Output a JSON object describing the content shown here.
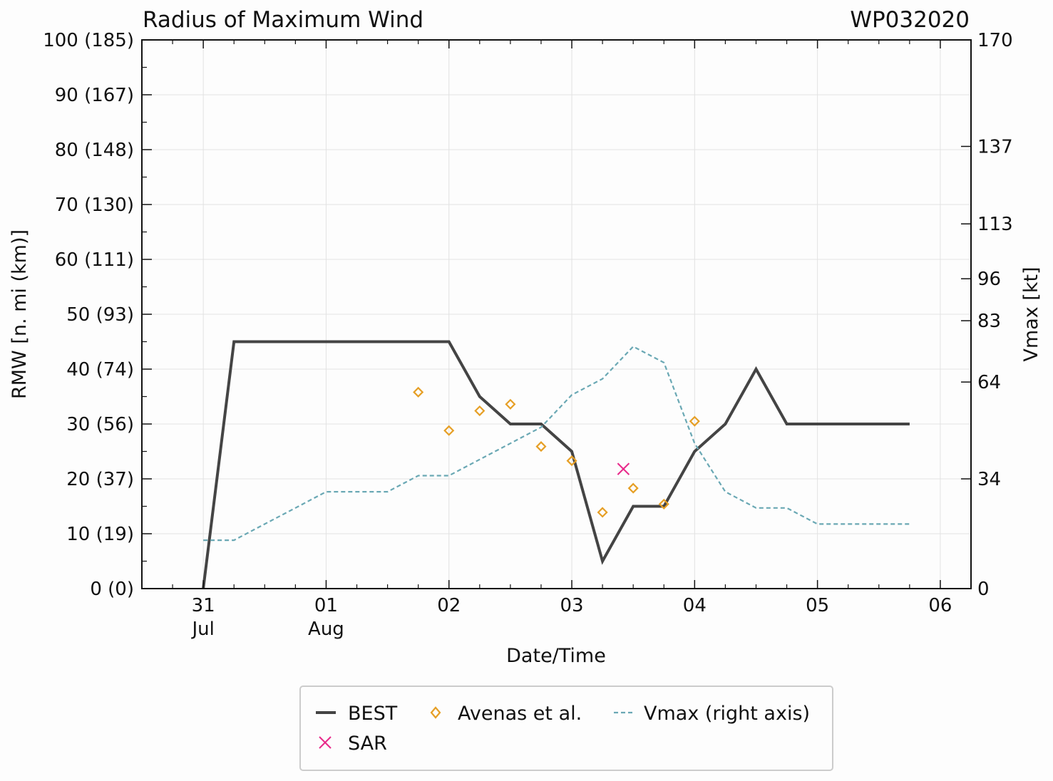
{
  "chart_data": {
    "type": "line",
    "title": "Radius of Maximum Wind",
    "storm_id": "WP032020",
    "xlabel": "Date/Time",
    "ylabel": "RMW [n. mi (km)]",
    "y2label": "Vmax [kt]",
    "xlim": [
      -0.5,
      6.25
    ],
    "ylim": [
      0,
      100
    ],
    "y2lim": [
      0,
      170
    ],
    "x_ticks": [
      {
        "x": 0,
        "label": "31",
        "sublabel": "Jul"
      },
      {
        "x": 1,
        "label": "01",
        "sublabel": "Aug"
      },
      {
        "x": 2,
        "label": "02",
        "sublabel": ""
      },
      {
        "x": 3,
        "label": "03",
        "sublabel": ""
      },
      {
        "x": 4,
        "label": "04",
        "sublabel": ""
      },
      {
        "x": 5,
        "label": "05",
        "sublabel": ""
      },
      {
        "x": 6,
        "label": "06",
        "sublabel": ""
      }
    ],
    "y_ticks": [
      {
        "y": 0,
        "label": "0 (0)"
      },
      {
        "y": 10,
        "label": "10 (19)"
      },
      {
        "y": 20,
        "label": "20 (37)"
      },
      {
        "y": 30,
        "label": "30 (56)"
      },
      {
        "y": 40,
        "label": "40 (74)"
      },
      {
        "y": 50,
        "label": "50 (93)"
      },
      {
        "y": 60,
        "label": "60 (111)"
      },
      {
        "y": 70,
        "label": "70 (130)"
      },
      {
        "y": 80,
        "label": "80 (148)"
      },
      {
        "y": 90,
        "label": "90 (167)"
      },
      {
        "y": 100,
        "label": "100 (185)"
      }
    ],
    "y2_ticks": [
      {
        "y": 0,
        "label": "0"
      },
      {
        "y": 34,
        "label": "34"
      },
      {
        "y": 64,
        "label": "64"
      },
      {
        "y": 83,
        "label": "83"
      },
      {
        "y": 96,
        "label": "96"
      },
      {
        "y": 113,
        "label": "113"
      },
      {
        "y": 137,
        "label": "137"
      },
      {
        "y": 170,
        "label": "170"
      }
    ],
    "series": [
      {
        "name": "BEST",
        "kind": "line",
        "color": "#444444",
        "x": [
          0,
          0.25,
          1.0,
          1.5,
          2.0,
          2.25,
          2.5,
          2.75,
          3.0,
          3.25,
          3.5,
          3.75,
          4.0,
          4.25,
          4.5,
          4.75,
          5.0,
          5.5,
          5.75
        ],
        "y": [
          0,
          45,
          45,
          45,
          45,
          35,
          30,
          30,
          25,
          5,
          15,
          15,
          25,
          30,
          40,
          30,
          30,
          30,
          30
        ]
      },
      {
        "name": "Avenas et al.",
        "kind": "scatter",
        "marker": "diamond",
        "color": "#E69F25",
        "x": [
          1.75,
          2.0,
          2.25,
          2.5,
          2.75,
          3.0,
          3.25,
          3.5,
          3.75,
          4.0
        ],
        "y": [
          35.8,
          28.8,
          32.4,
          33.6,
          25.9,
          23.3,
          13.9,
          18.3,
          15.4,
          30.5
        ]
      },
      {
        "name": "SAR",
        "kind": "scatter",
        "marker": "x",
        "color": "#E8298A",
        "x": [
          3.42
        ],
        "y": [
          21.8
        ]
      },
      {
        "name": "Vmax (right axis)",
        "kind": "line",
        "dash": true,
        "axis": "right",
        "color": "#6AA8B4",
        "x": [
          0,
          0.25,
          0.5,
          0.75,
          1.0,
          1.25,
          1.5,
          1.75,
          2.0,
          2.25,
          2.5,
          2.75,
          3.0,
          3.25,
          3.5,
          3.75,
          4.0,
          4.25,
          4.5,
          4.75,
          5.0,
          5.25,
          5.5,
          5.75
        ],
        "y": [
          15,
          15,
          20,
          25,
          30,
          30,
          30,
          35,
          35,
          40,
          45,
          50,
          60,
          65,
          75,
          70,
          45,
          30,
          25,
          25,
          20,
          20,
          20,
          20
        ]
      }
    ],
    "legend": {
      "placement": "bottom-center",
      "entries": [
        {
          "label": "BEST",
          "marker": "line",
          "color": "#444444"
        },
        {
          "label": "Avenas et al.",
          "marker": "diamond",
          "color": "#E69F25"
        },
        {
          "label": "Vmax (right axis)",
          "marker": "dashed-line",
          "color": "#6AA8B4"
        },
        {
          "label": "SAR",
          "marker": "x",
          "color": "#E8298A"
        }
      ]
    }
  }
}
